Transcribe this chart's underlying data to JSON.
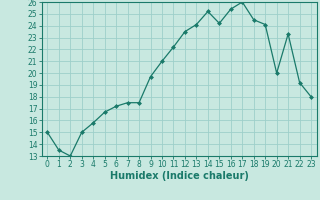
{
  "x": [
    0,
    1,
    2,
    3,
    4,
    5,
    6,
    7,
    8,
    9,
    10,
    11,
    12,
    13,
    14,
    15,
    16,
    17,
    18,
    19,
    20,
    21,
    22,
    23
  ],
  "y": [
    15,
    13.5,
    13,
    15,
    15.8,
    16.7,
    17.2,
    17.5,
    17.5,
    19.7,
    21,
    22.2,
    23.5,
    24.1,
    25.2,
    24.2,
    25.4,
    26,
    24.5,
    24.1,
    20,
    23.3,
    19.2,
    18
  ],
  "line_color": "#1a7a6a",
  "marker": "D",
  "marker_size": 2,
  "bg_color": "#c8e8e0",
  "grid_color": "#9ecfca",
  "xlabel": "Humidex (Indice chaleur)",
  "ylim": [
    13,
    26
  ],
  "xlim": [
    -0.5,
    23.5
  ],
  "yticks": [
    13,
    14,
    15,
    16,
    17,
    18,
    19,
    20,
    21,
    22,
    23,
    24,
    25,
    26
  ],
  "xticks": [
    0,
    1,
    2,
    3,
    4,
    5,
    6,
    7,
    8,
    9,
    10,
    11,
    12,
    13,
    14,
    15,
    16,
    17,
    18,
    19,
    20,
    21,
    22,
    23
  ],
  "tick_label_fontsize": 5.5,
  "xlabel_fontsize": 7,
  "axis_color": "#1a7a6a"
}
